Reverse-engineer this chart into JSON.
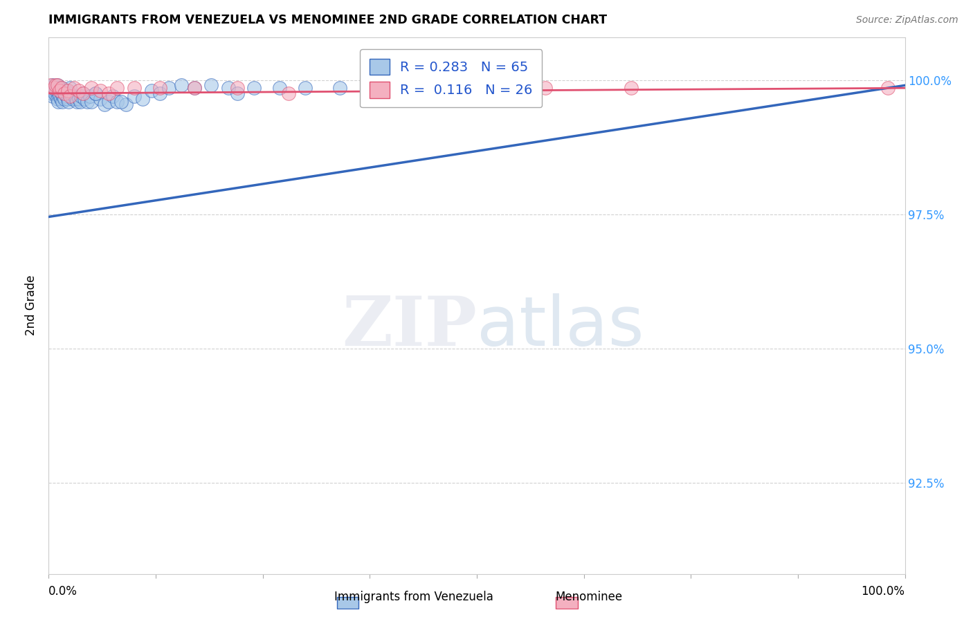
{
  "title": "IMMIGRANTS FROM VENEZUELA VS MENOMINEE 2ND GRADE CORRELATION CHART",
  "source": "Source: ZipAtlas.com",
  "ylabel": "2nd Grade",
  "ytick_labels": [
    "100.0%",
    "97.5%",
    "95.0%",
    "92.5%"
  ],
  "ytick_values": [
    1.0,
    0.975,
    0.95,
    0.925
  ],
  "xlim": [
    0.0,
    1.0
  ],
  "ylim": [
    0.908,
    1.008
  ],
  "legend1_R": "0.283",
  "legend1_N": "65",
  "legend2_R": "0.116",
  "legend2_N": "26",
  "blue_color": "#a8c8e8",
  "pink_color": "#f4b0c0",
  "blue_line_color": "#3366bb",
  "pink_line_color": "#e05070",
  "blue_scatter_x": [
    0.002,
    0.003,
    0.004,
    0.005,
    0.005,
    0.006,
    0.007,
    0.008,
    0.009,
    0.01,
    0.01,
    0.011,
    0.012,
    0.012,
    0.013,
    0.014,
    0.015,
    0.016,
    0.017,
    0.018,
    0.019,
    0.02,
    0.021,
    0.022,
    0.023,
    0.025,
    0.027,
    0.028,
    0.03,
    0.032,
    0.033,
    0.035,
    0.037,
    0.038,
    0.04,
    0.042,
    0.045,
    0.048,
    0.05,
    0.055,
    0.06,
    0.065,
    0.07,
    0.075,
    0.08,
    0.09,
    0.1,
    0.11,
    0.12,
    0.13,
    0.14,
    0.155,
    0.17,
    0.19,
    0.21,
    0.24,
    0.27,
    0.3,
    0.34,
    0.38,
    0.015,
    0.025,
    0.055,
    0.085,
    0.22
  ],
  "blue_scatter_y": [
    0.9985,
    0.998,
    0.9975,
    0.999,
    0.997,
    0.998,
    0.9975,
    0.9985,
    0.998,
    0.999,
    0.9965,
    0.996,
    0.9985,
    0.9975,
    0.997,
    0.9965,
    0.9975,
    0.996,
    0.997,
    0.9965,
    0.9975,
    0.998,
    0.997,
    0.9965,
    0.996,
    0.9975,
    0.997,
    0.9965,
    0.997,
    0.9965,
    0.996,
    0.9965,
    0.996,
    0.997,
    0.9975,
    0.9965,
    0.996,
    0.997,
    0.996,
    0.9975,
    0.9965,
    0.9955,
    0.996,
    0.997,
    0.996,
    0.9955,
    0.997,
    0.9965,
    0.998,
    0.9975,
    0.9985,
    0.999,
    0.9985,
    0.999,
    0.9985,
    0.9985,
    0.9985,
    0.9985,
    0.9985,
    0.9985,
    0.9985,
    0.9985,
    0.9975,
    0.996,
    0.9975
  ],
  "pink_scatter_x": [
    0.002,
    0.006,
    0.008,
    0.01,
    0.013,
    0.015,
    0.018,
    0.022,
    0.025,
    0.03,
    0.035,
    0.04,
    0.05,
    0.06,
    0.07,
    0.08,
    0.1,
    0.13,
    0.17,
    0.22,
    0.28,
    0.38,
    0.48,
    0.58,
    0.68,
    0.98
  ],
  "pink_scatter_y": [
    0.999,
    0.9985,
    0.999,
    0.999,
    0.998,
    0.9985,
    0.9975,
    0.998,
    0.997,
    0.9985,
    0.998,
    0.9975,
    0.9985,
    0.998,
    0.9975,
    0.9985,
    0.9985,
    0.9985,
    0.9985,
    0.9985,
    0.9975,
    0.998,
    0.9975,
    0.9985,
    0.9985,
    0.9985
  ],
  "blue_line_x0": 0.0,
  "blue_line_y0": 0.9745,
  "blue_line_x1": 1.0,
  "blue_line_y1": 0.999,
  "pink_line_x0": 0.0,
  "pink_line_y0": 0.9975,
  "pink_line_x1": 1.0,
  "pink_line_y1": 0.9985,
  "watermark_zip": "ZIP",
  "watermark_atlas": "atlas",
  "background_color": "#ffffff",
  "grid_color": "#cccccc"
}
